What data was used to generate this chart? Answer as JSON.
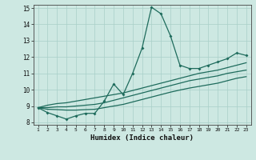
{
  "xlabel": "Humidex (Indice chaleur)",
  "bg_color": "#cde8e2",
  "grid_color": "#a8cfc8",
  "line_color": "#1e6b5c",
  "xlim": [
    0.5,
    23.5
  ],
  "ylim": [
    7.85,
    15.2
  ],
  "xticks": [
    1,
    2,
    3,
    4,
    5,
    6,
    7,
    8,
    9,
    10,
    11,
    12,
    13,
    14,
    15,
    16,
    17,
    18,
    19,
    20,
    21,
    22,
    23
  ],
  "yticks": [
    8,
    9,
    10,
    11,
    12,
    13,
    14,
    15
  ],
  "series1_x": [
    1,
    2,
    3,
    4,
    5,
    6,
    7,
    8,
    9,
    10,
    11,
    12,
    13,
    14,
    15,
    16,
    17,
    18,
    19,
    20,
    21,
    22,
    23
  ],
  "series1_y": [
    8.9,
    8.6,
    8.4,
    8.2,
    8.4,
    8.55,
    8.55,
    9.3,
    10.35,
    9.7,
    11.0,
    12.55,
    15.05,
    14.65,
    13.3,
    11.5,
    11.3,
    11.3,
    11.5,
    11.7,
    11.9,
    12.25,
    12.1
  ],
  "series2_x": [
    1,
    2,
    3,
    4,
    5,
    6,
    7,
    8,
    9,
    10,
    11,
    12,
    13,
    14,
    15,
    16,
    17,
    18,
    19,
    20,
    21,
    22,
    23
  ],
  "series2_y": [
    8.9,
    9.05,
    9.15,
    9.2,
    9.3,
    9.4,
    9.5,
    9.6,
    9.7,
    9.8,
    9.95,
    10.1,
    10.25,
    10.4,
    10.55,
    10.7,
    10.85,
    11.0,
    11.1,
    11.2,
    11.35,
    11.5,
    11.65
  ],
  "series3_x": [
    1,
    2,
    3,
    4,
    5,
    6,
    7,
    8,
    9,
    10,
    11,
    12,
    13,
    14,
    15,
    16,
    17,
    18,
    19,
    20,
    21,
    22,
    23
  ],
  "series3_y": [
    8.9,
    8.9,
    8.95,
    8.95,
    9.0,
    9.05,
    9.1,
    9.2,
    9.35,
    9.5,
    9.65,
    9.8,
    9.95,
    10.1,
    10.25,
    10.4,
    10.55,
    10.65,
    10.75,
    10.85,
    11.0,
    11.1,
    11.2
  ],
  "series4_x": [
    1,
    2,
    3,
    4,
    5,
    6,
    7,
    8,
    9,
    10,
    11,
    12,
    13,
    14,
    15,
    16,
    17,
    18,
    19,
    20,
    21,
    22,
    23
  ],
  "series4_y": [
    8.9,
    8.8,
    8.78,
    8.75,
    8.75,
    8.78,
    8.8,
    8.9,
    9.0,
    9.1,
    9.25,
    9.4,
    9.55,
    9.7,
    9.85,
    9.98,
    10.1,
    10.2,
    10.3,
    10.4,
    10.55,
    10.7,
    10.8
  ]
}
